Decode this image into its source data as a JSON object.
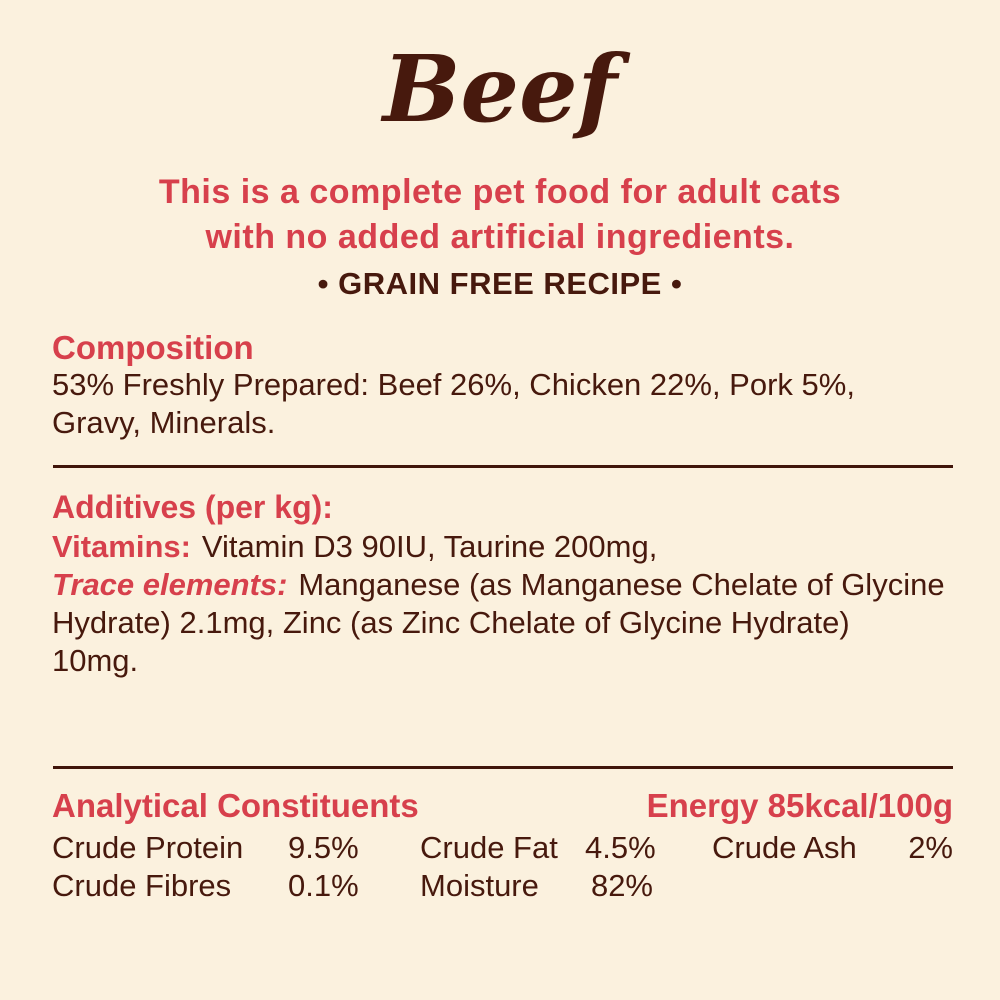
{
  "colors": {
    "background": "#fbf1de",
    "red": "#d7404c",
    "brown": "#47190d"
  },
  "header": {
    "title": "Beef",
    "intro_lines": [
      "This is a complete pet food for adult cats",
      "with no added artificial ingredients."
    ],
    "badge": "• GRAIN FREE RECIPE •"
  },
  "composition": {
    "heading": "Composition",
    "text": "53% Freshly Prepared: Beef 26%, Chicken 22%, Pork 5%, Gravy, Minerals."
  },
  "additives": {
    "heading": "Additives (per kg):",
    "vitamins_label": "Vitamins:",
    "vitamins_text": "Vitamin D3 90IU, Taurine 200mg,",
    "trace_label": "Trace elements:",
    "trace_lines": [
      "Manganese (as Manganese Chelate of Glycine",
      "Hydrate) 2.1mg, Zinc (as Zinc Chelate of Glycine Hydrate)",
      "10mg."
    ]
  },
  "analytical": {
    "heading": "Analytical Constituents",
    "energy": "Energy 85kcal/100g",
    "rows": [
      {
        "label": "Crude Protein",
        "value": "9.5%"
      },
      {
        "label": "Crude Fat",
        "value": "4.5%"
      },
      {
        "label": "Crude Ash",
        "value": "2%"
      },
      {
        "label": "Crude Fibres",
        "value": "0.1%"
      },
      {
        "label": "Moisture",
        "value": "82%"
      }
    ]
  }
}
